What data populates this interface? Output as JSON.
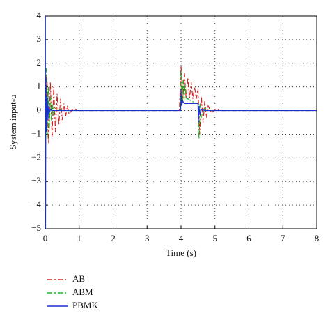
{
  "chart_data": {
    "type": "line",
    "xlabel": "Time (s)",
    "ylabel": "System input-u",
    "xlim": [
      0,
      8
    ],
    "ylim": [
      -5,
      4
    ],
    "xticks": [
      0,
      1,
      2,
      3,
      4,
      5,
      6,
      7,
      8
    ],
    "yticks": [
      {
        "value": -5,
        "label": "−5"
      },
      {
        "value": -4,
        "label": "−4"
      },
      {
        "value": -3,
        "label": "−3"
      },
      {
        "value": -2,
        "label": "−2"
      },
      {
        "value": -1,
        "label": "−1"
      },
      0,
      1,
      2,
      3,
      4
    ],
    "grid": true,
    "series": [
      {
        "name": "AB",
        "color": "#d42020",
        "dash": "dashdot",
        "x": [
          0,
          0.05,
          0.1,
          0.15,
          0.2,
          0.25,
          0.3,
          0.35,
          0.4,
          0.45,
          0.5,
          0.55,
          0.6,
          0.65,
          0.7,
          0.8,
          1.0,
          2,
          3,
          3.95,
          4.0,
          4.05,
          4.1,
          4.15,
          4.2,
          4.25,
          4.3,
          4.35,
          4.4,
          4.45,
          4.5,
          4.55,
          4.6,
          4.65,
          4.7,
          4.75,
          4.8,
          4.9,
          5.0,
          5.2,
          6,
          7,
          8
        ],
        "values": [
          0,
          1.5,
          -1.4,
          1.2,
          -1.1,
          1.0,
          -0.9,
          0.7,
          -0.6,
          0.5,
          -0.4,
          0.3,
          -0.25,
          0.2,
          -0.15,
          0.05,
          0,
          0,
          0,
          0,
          1.9,
          0.4,
          1.6,
          0.5,
          1.4,
          0.5,
          1.2,
          0.5,
          1.0,
          0.5,
          0.9,
          -1.0,
          0.6,
          -0.5,
          0.4,
          -0.3,
          0.2,
          -0.1,
          0.05,
          0,
          0,
          0,
          0
        ]
      },
      {
        "name": "ABM",
        "color": "#22b022",
        "dash": "dashdot",
        "x": [
          0,
          0.03,
          0.06,
          0.09,
          0.12,
          0.15,
          0.18,
          0.21,
          0.24,
          0.3,
          0.4,
          0.5,
          1,
          2,
          3,
          3.98,
          4.0,
          4.03,
          4.06,
          4.09,
          4.12,
          4.15,
          4.2,
          4.3,
          4.4,
          4.5,
          4.53,
          4.56,
          4.6,
          4.7,
          4.8,
          5,
          6,
          7,
          8
        ],
        "values": [
          0,
          1.8,
          -1.2,
          1.0,
          -0.8,
          0.6,
          -0.4,
          0.3,
          -0.2,
          0.1,
          0.05,
          0,
          0,
          0,
          0,
          0,
          1.7,
          0.3,
          1.3,
          0.4,
          1.1,
          0.5,
          0.5,
          0.4,
          0.35,
          0.3,
          -1.2,
          0.3,
          -0.3,
          0.1,
          0,
          0,
          0,
          0,
          0
        ]
      },
      {
        "name": "PBMK",
        "color": "#1a2fd0",
        "dash": "solid",
        "x": [
          0,
          0.005,
          0.01,
          0.02,
          0.04,
          0.06,
          0.08,
          0.1,
          0.12,
          0.15,
          0.2,
          1,
          2,
          3,
          3.99,
          4.0,
          4.02,
          4.05,
          4.1,
          4.5,
          4.51,
          4.53,
          4.56,
          4.6,
          4.7,
          5,
          6,
          7,
          8
        ],
        "values": [
          0,
          4,
          -5,
          1.4,
          -0.9,
          0.6,
          -0.4,
          0.2,
          -0.1,
          0.05,
          0,
          0,
          0,
          0,
          0,
          0.9,
          0.2,
          0.4,
          0.3,
          0.3,
          -0.5,
          0.2,
          -0.2,
          0.05,
          0,
          0,
          0,
          0,
          0
        ]
      }
    ]
  }
}
